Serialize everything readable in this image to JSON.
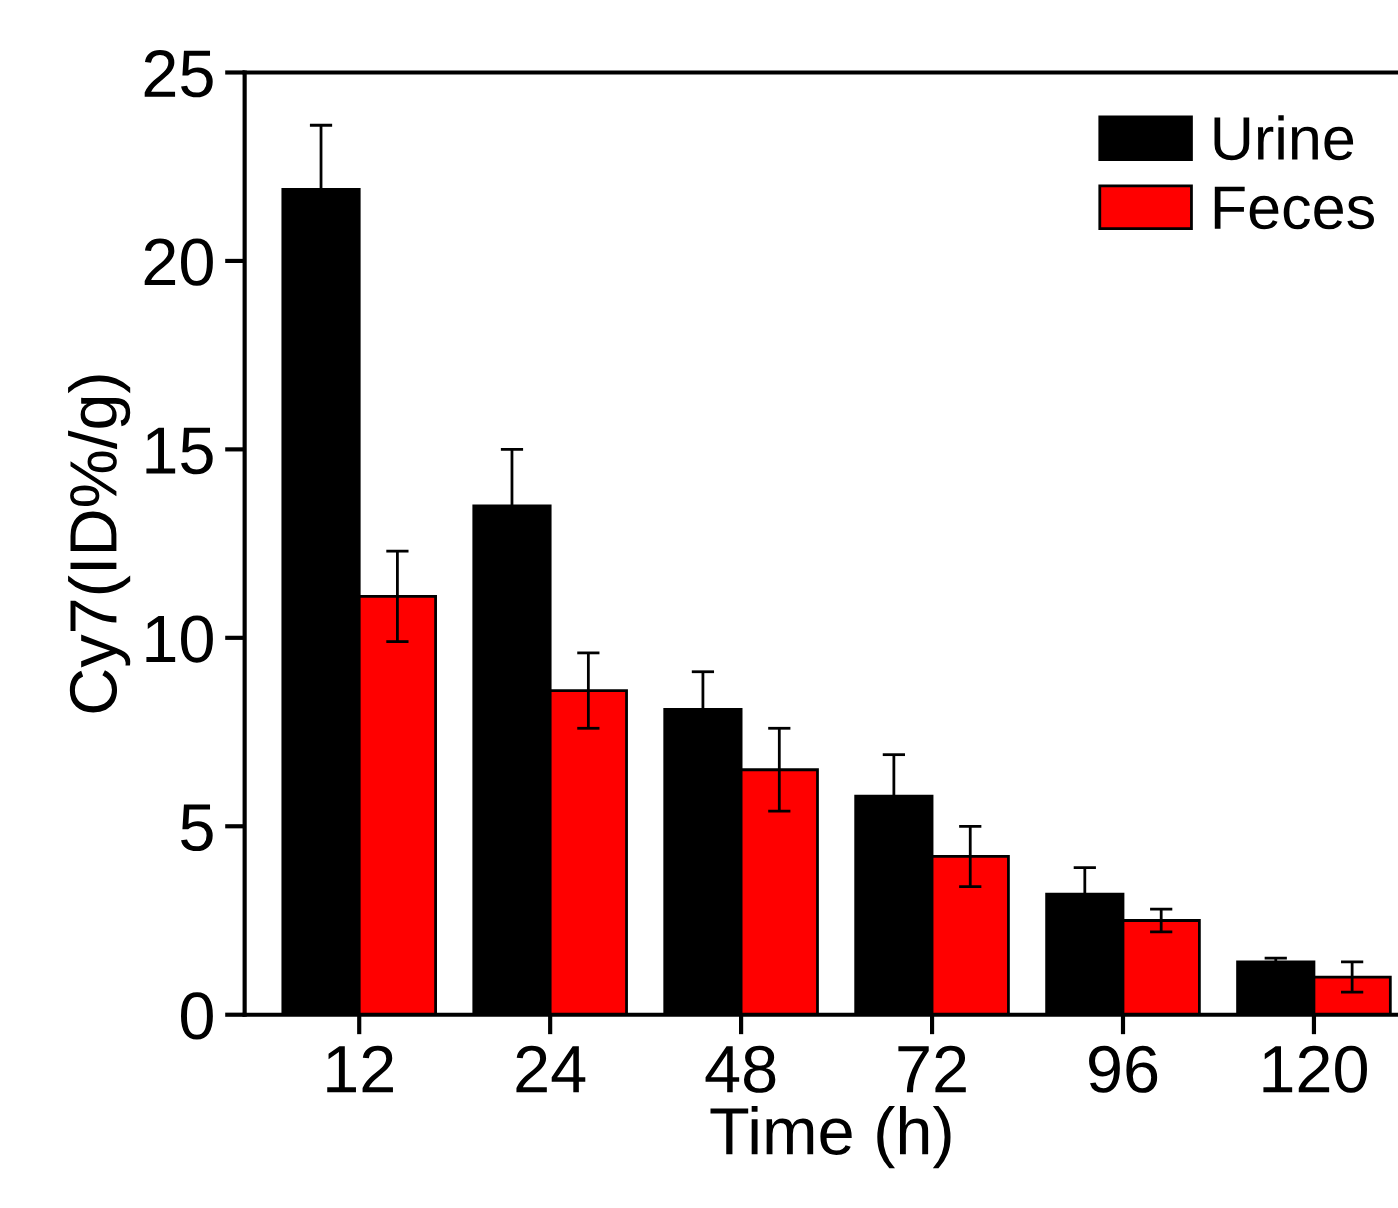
{
  "chart_data": {
    "type": "bar",
    "xlabel": "Time (h)",
    "ylabel": "Cy7(ID%/g)",
    "categories": [
      "12",
      "24",
      "48",
      "72",
      "96",
      "120"
    ],
    "series": [
      {
        "name": "Urine",
        "color": "#000000",
        "values": [
          21.9,
          13.5,
          8.1,
          5.8,
          3.2,
          1.4
        ],
        "errors": [
          1.7,
          1.5,
          1.0,
          1.1,
          0.7,
          0.1
        ]
      },
      {
        "name": "Feces",
        "color": "#ff0000",
        "values": [
          11.1,
          8.6,
          6.5,
          4.2,
          2.5,
          1.0
        ],
        "errors": [
          1.2,
          1.0,
          1.1,
          0.8,
          0.3,
          0.4
        ]
      }
    ],
    "ylim": [
      0,
      25
    ],
    "yticks": [
      0,
      5,
      10,
      15,
      20,
      25
    ],
    "legend": "top right",
    "grid": false
  }
}
